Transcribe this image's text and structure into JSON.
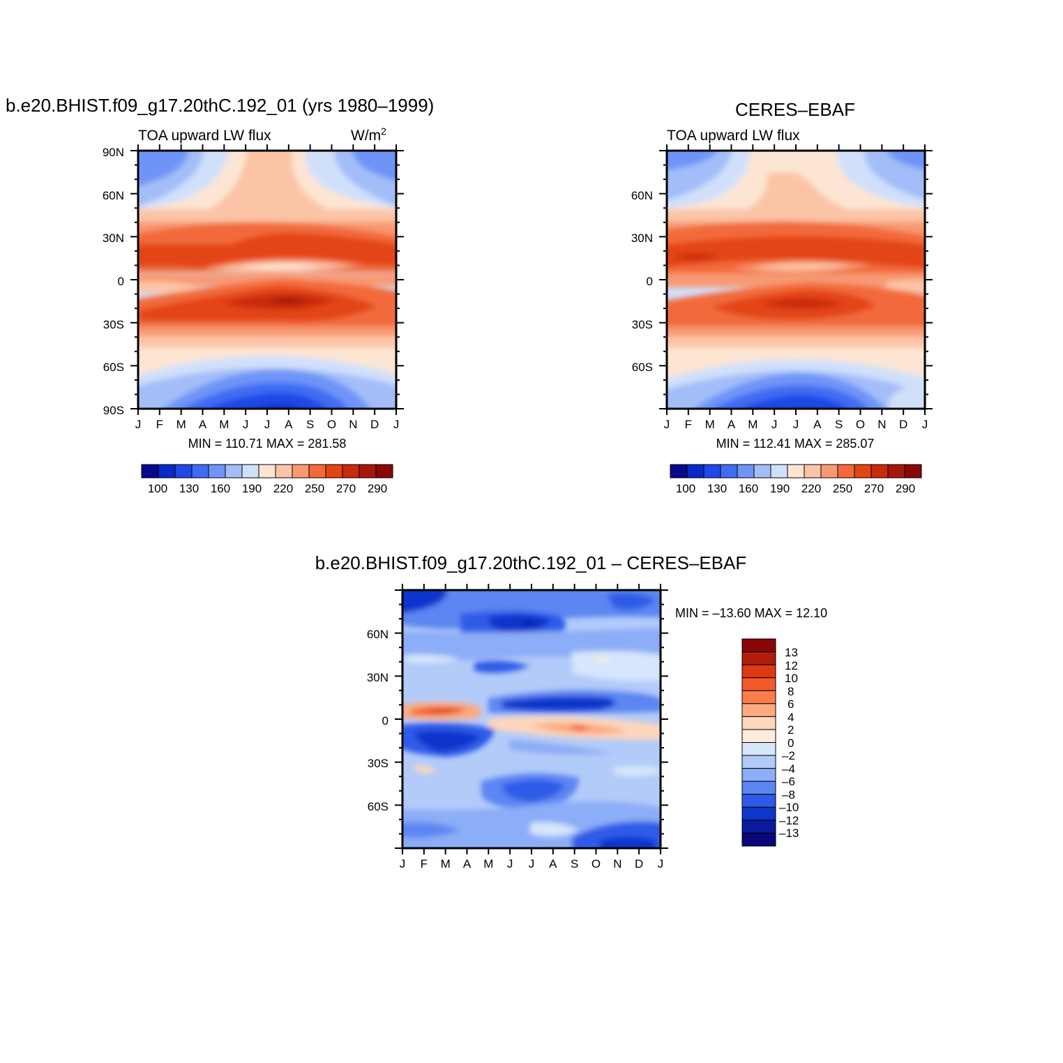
{
  "months": [
    "J",
    "F",
    "M",
    "A",
    "M",
    "J",
    "J",
    "A",
    "S",
    "O",
    "N",
    "D",
    "J"
  ],
  "panels": [
    {
      "id": "model",
      "title": "b.e20.BHIST.f09_g17.20thC.192_01 (yrs 1980–1999)",
      "subtitle_left": "TOA upward LW flux",
      "units": "W/m",
      "units_sup": "2",
      "lat_ticks": [
        "90N",
        "60N",
        "30N",
        "0",
        "30S",
        "60S",
        "90S"
      ],
      "stats": "MIN = 110.71 MAX = 281.58",
      "colorbar_labels": [
        "100",
        "130",
        "160",
        "190",
        "220",
        "250",
        "270",
        "290"
      ]
    },
    {
      "id": "obs",
      "title": "CERES–EBAF",
      "subtitle_left": "TOA upward LW flux",
      "lat_ticks": [
        "60N",
        "30N",
        "0",
        "30S",
        "60S"
      ],
      "stats": "MIN = 112.41 MAX = 285.07",
      "colorbar_labels": [
        "100",
        "130",
        "160",
        "190",
        "220",
        "250",
        "270",
        "290"
      ]
    },
    {
      "id": "diff",
      "title": "b.e20.BHIST.f09_g17.20thC.192_01 – CERES–EBAF",
      "lat_ticks": [
        "60N",
        "30N",
        "0",
        "30S",
        "60S"
      ],
      "stats": "MIN = –13.60 MAX = 12.10",
      "colorbar_labels": [
        "13",
        "12",
        "10",
        "8",
        "6",
        "4",
        "2",
        "0",
        "–2",
        "–4",
        "–6",
        "–8",
        "–10",
        "–12",
        "–13"
      ]
    }
  ],
  "chart_data": [
    {
      "type": "heatmap",
      "title": "b.e20.BHIST.f09_g17.20thC.192_01 (yrs 1980–1999)",
      "variable": "TOA upward LW flux",
      "units": "W/m2",
      "x": [
        "J",
        "F",
        "M",
        "A",
        "M",
        "J",
        "J",
        "A",
        "S",
        "O",
        "N",
        "D",
        "J"
      ],
      "y_range": [
        -90,
        90
      ],
      "min": 110.71,
      "max": 281.58,
      "levels": [
        100,
        115,
        130,
        145,
        160,
        175,
        190,
        205,
        220,
        235,
        250,
        260,
        270,
        280,
        290
      ],
      "colors": [
        "#08088c",
        "#0a2ac8",
        "#1f48e6",
        "#3f6cf2",
        "#6e94f7",
        "#a3bdf9",
        "#d0e0fb",
        "#fde5d3",
        "#fcc4a6",
        "#f79a73",
        "#f26a3a",
        "#e34413",
        "#c92a0c",
        "#a71709",
        "#8a0707"
      ]
    },
    {
      "type": "heatmap",
      "title": "CERES–EBAF",
      "variable": "TOA upward LW flux",
      "x": [
        "J",
        "F",
        "M",
        "A",
        "M",
        "J",
        "J",
        "A",
        "S",
        "O",
        "N",
        "D",
        "J"
      ],
      "y_range": [
        -90,
        90
      ],
      "min": 112.41,
      "max": 285.07,
      "levels": [
        100,
        115,
        130,
        145,
        160,
        175,
        190,
        205,
        220,
        235,
        250,
        260,
        270,
        280,
        290
      ],
      "colors": [
        "#08088c",
        "#0a2ac8",
        "#1f48e6",
        "#3f6cf2",
        "#6e94f7",
        "#a3bdf9",
        "#d0e0fb",
        "#fde5d3",
        "#fcc4a6",
        "#f79a73",
        "#f26a3a",
        "#e34413",
        "#c92a0c",
        "#a71709",
        "#8a0707"
      ]
    },
    {
      "type": "heatmap",
      "title": "b.e20.BHIST.f09_g17.20thC.192_01 – CERES–EBAF",
      "x": [
        "J",
        "F",
        "M",
        "A",
        "M",
        "J",
        "J",
        "A",
        "S",
        "O",
        "N",
        "D",
        "J"
      ],
      "y_range": [
        -90,
        90
      ],
      "min": -13.6,
      "max": 12.1,
      "levels": [
        13,
        12,
        10,
        8,
        6,
        4,
        2,
        0,
        -2,
        -4,
        -6,
        -8,
        -10,
        -12,
        -13
      ],
      "colors": [
        "#8a0707",
        "#b21c0a",
        "#dd3a12",
        "#f25a2c",
        "#fb7d4a",
        "#fcaa80",
        "#fdd6bc",
        "#fdebdc",
        "#d6e6fb",
        "#b3cbf9",
        "#8cadf7",
        "#5c86f2",
        "#2d5be8",
        "#1035cc",
        "#0a1a9c",
        "#08087a"
      ]
    }
  ]
}
